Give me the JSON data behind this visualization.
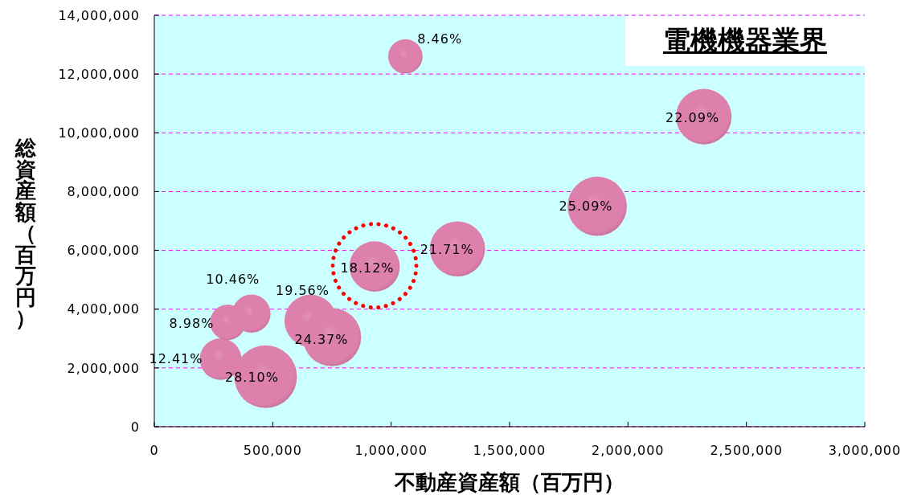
{
  "chart_data": {
    "type": "bubble",
    "title": "電機機器業界",
    "xlabel": "不動産資産額（百万円）",
    "ylabel": "総資産額（百万円）",
    "x": [
      280000,
      310000,
      410000,
      470000,
      660000,
      750000,
      930000,
      1060000,
      1280000,
      1870000,
      2320000
    ],
    "values": [
      2300000,
      3550000,
      3850000,
      1700000,
      3600000,
      3050000,
      5450000,
      12600000,
      6050000,
      7500000,
      10550000
    ],
    "sizes": [
      0.442,
      0.32,
      0.372,
      1,
      0.696,
      0.867,
      0.645,
      0.301,
      0.773,
      0.893,
      0.786
    ],
    "annotations": [
      {
        "text": "12.41%",
        "x": 280000,
        "y": 2300000
      },
      {
        "text": "8.98%",
        "x": 310000,
        "y": 3550000
      },
      {
        "text": "10.46%",
        "x": 410000,
        "y": 3850000
      },
      {
        "text": "28.10%",
        "x": 470000,
        "y": 1700000
      },
      {
        "text": "19.56%",
        "x": 660000,
        "y": 3600000
      },
      {
        "text": "24.37%",
        "x": 750000,
        "y": 3050000
      },
      {
        "text": "18.12%",
        "x": 930000,
        "y": 5450000
      },
      {
        "text": "8.46%",
        "x": 1060000,
        "y": 12600000
      },
      {
        "text": "21.71%",
        "x": 1280000,
        "y": 6050000
      },
      {
        "text": "25.09%",
        "x": 1870000,
        "y": 7500000
      },
      {
        "text": "22.09%",
        "x": 2320000,
        "y": 10550000
      }
    ],
    "color": "#dd80ab",
    "marker": "circle",
    "grid": "y",
    "xlim": [
      0,
      3000000
    ],
    "xticks": [
      0,
      {
        "value": 500000,
        "label": "500,000"
      },
      {
        "value": 1000000,
        "label": "1,000,000"
      },
      {
        "value": 1500000,
        "label": "1,500,000"
      },
      {
        "value": 2000000,
        "label": "2,000,000"
      },
      {
        "value": 2500000,
        "label": "2,500,000"
      },
      {
        "value": 3000000,
        "label": "3,000,000"
      }
    ],
    "ylim": [
      0,
      14000000
    ],
    "yticks": [
      0,
      {
        "value": 2000000,
        "label": "2,000,000"
      },
      {
        "value": 4000000,
        "label": "4,000,000"
      },
      {
        "value": 6000000,
        "label": "6,000,000"
      },
      {
        "value": 8000000,
        "label": "8,000,000"
      },
      {
        "value": 10000000,
        "label": "10,000,000"
      },
      {
        "value": 12000000,
        "label": "12,000,000"
      },
      {
        "value": 14000000,
        "label": "14,000,000"
      }
    ]
  }
}
